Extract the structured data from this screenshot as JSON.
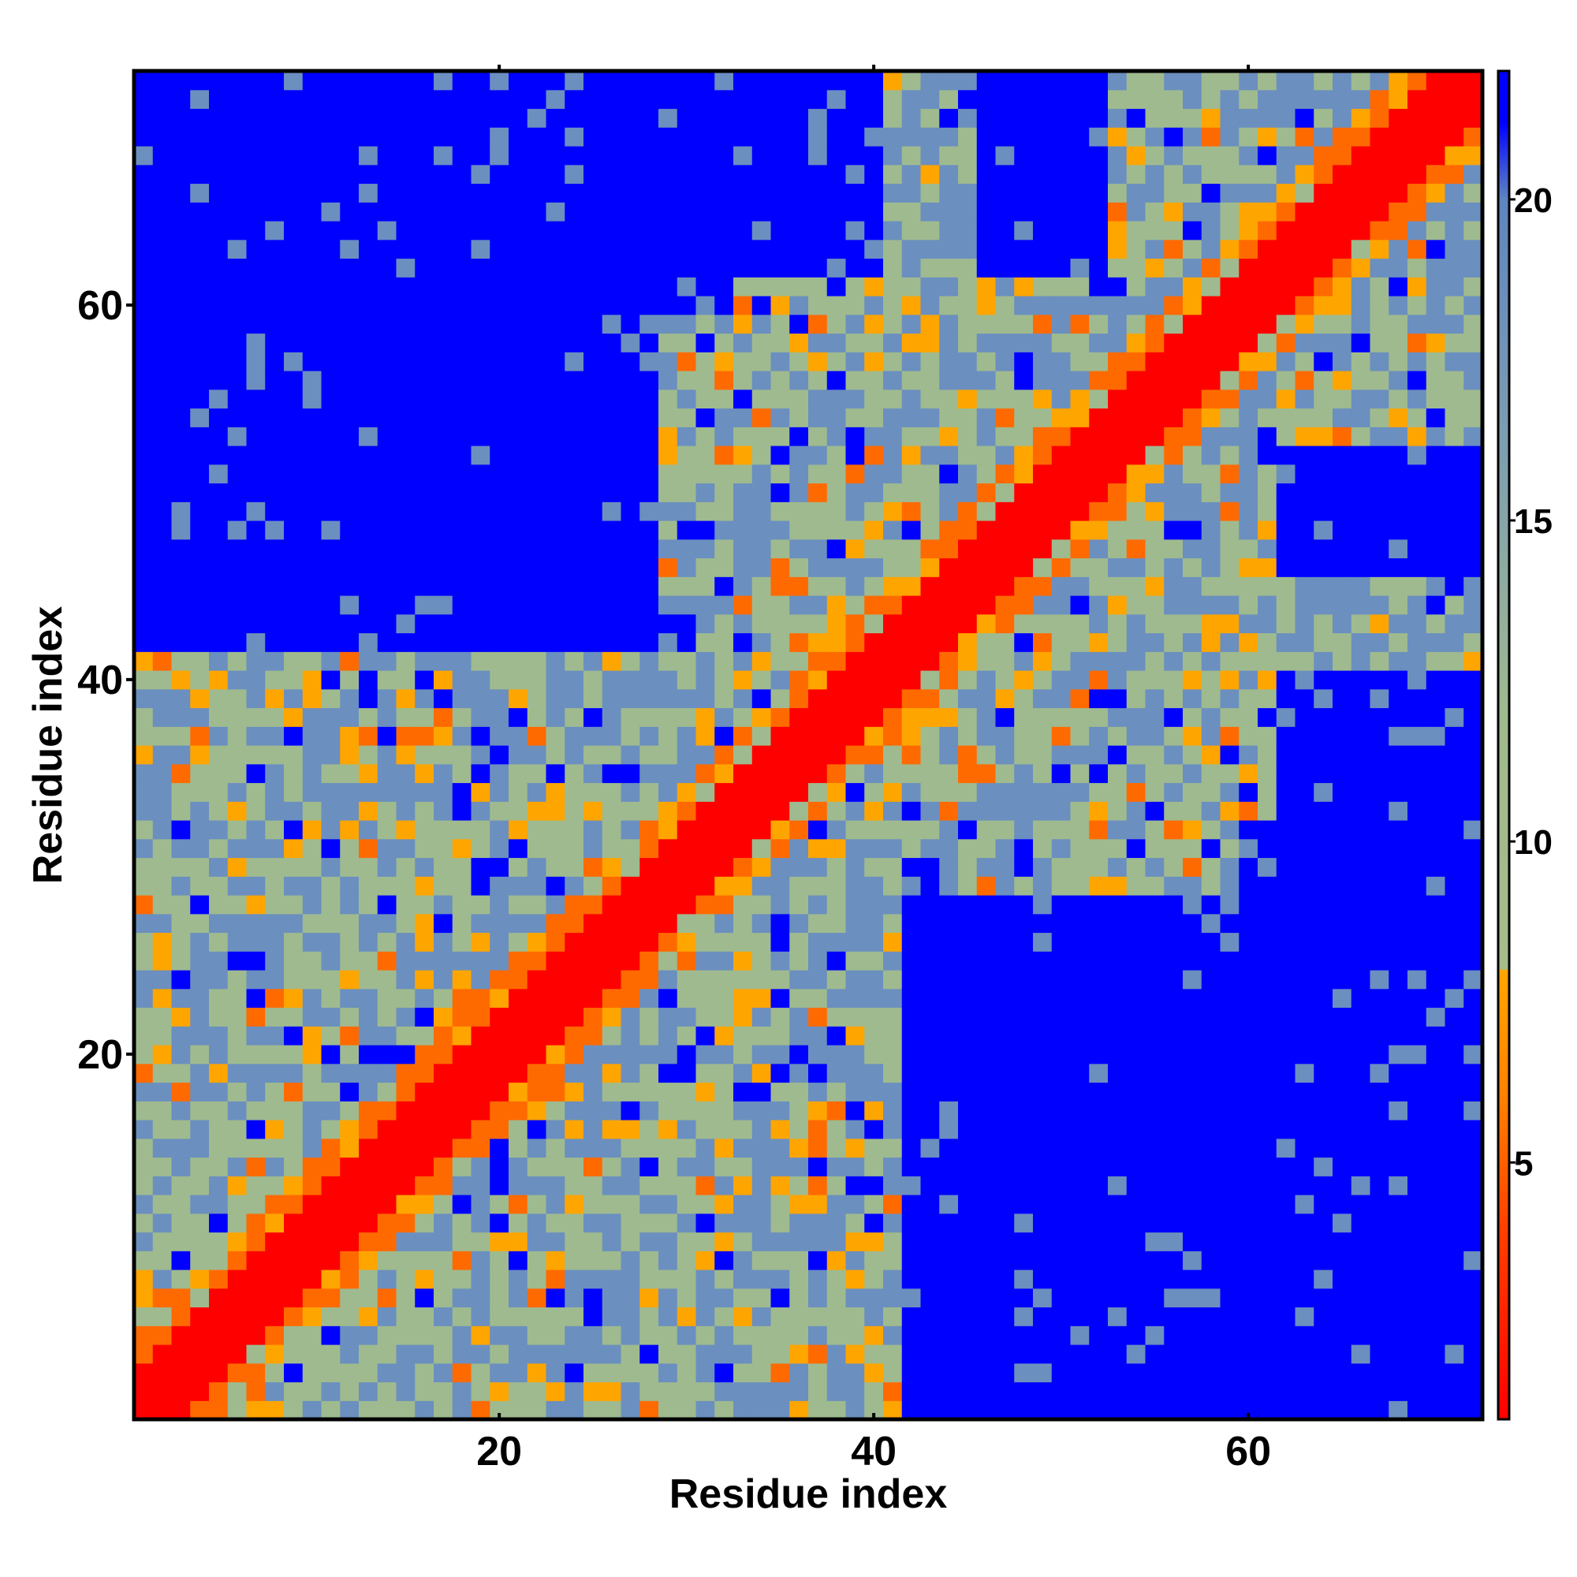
{
  "chart_data": {
    "type": "heatmap",
    "title": "",
    "xlabel": "Residue index",
    "ylabel": "Residue index",
    "n_residues": 72,
    "x_range": [
      0.5,
      72.5
    ],
    "y_range": [
      0.5,
      72.5
    ],
    "x_ticks": [
      20,
      40,
      60
    ],
    "y_ticks": [
      20,
      40,
      60
    ],
    "colorbar": {
      "range": [
        1,
        22
      ],
      "ticks": [
        5,
        10,
        15,
        20
      ],
      "stops": [
        {
          "value": 1,
          "color": "#ff0000"
        },
        {
          "value": 4,
          "color": "#ff4000"
        },
        {
          "value": 6,
          "color": "#ff8000"
        },
        {
          "value": 8,
          "color": "#ffa500"
        },
        {
          "value": 8.01,
          "color": "#a6bd8a"
        },
        {
          "value": 12,
          "color": "#9fb98f"
        },
        {
          "value": 16,
          "color": "#7f9fb0"
        },
        {
          "value": 20,
          "color": "#5f85c0"
        },
        {
          "value": 21.2,
          "color": "#0000ff"
        }
      ]
    },
    "colors": {
      "diagonal": "#ff0000",
      "contact_near": "#ff6a00",
      "contact_far": "#ffa500",
      "mid": "#9fba8f",
      "far": "#6b8fbf",
      "very_far": "#0000ff"
    },
    "description_matrix": "symmetric residue-residue distance map; values near 1 on diagonal rising to >21 far from diagonal",
    "blue_regions": [
      {
        "x": [
          1,
          21
        ],
        "y": [
          47,
          72
        ]
      },
      {
        "x": [
          1,
          12
        ],
        "y": [
          58,
          72
        ]
      },
      {
        "x": [
          42,
          72
        ],
        "y": [
          1,
          28
        ]
      },
      {
        "x": [
          64,
          72
        ],
        "y": [
          1,
          40
        ]
      },
      {
        "x": [
          20,
          32
        ],
        "y": [
          60,
          72
        ]
      },
      {
        "x": [
          33,
          40
        ],
        "y": [
          62,
          72
        ]
      },
      {
        "x": [
          46,
          52
        ],
        "y": [
          62,
          72
        ]
      }
    ]
  }
}
